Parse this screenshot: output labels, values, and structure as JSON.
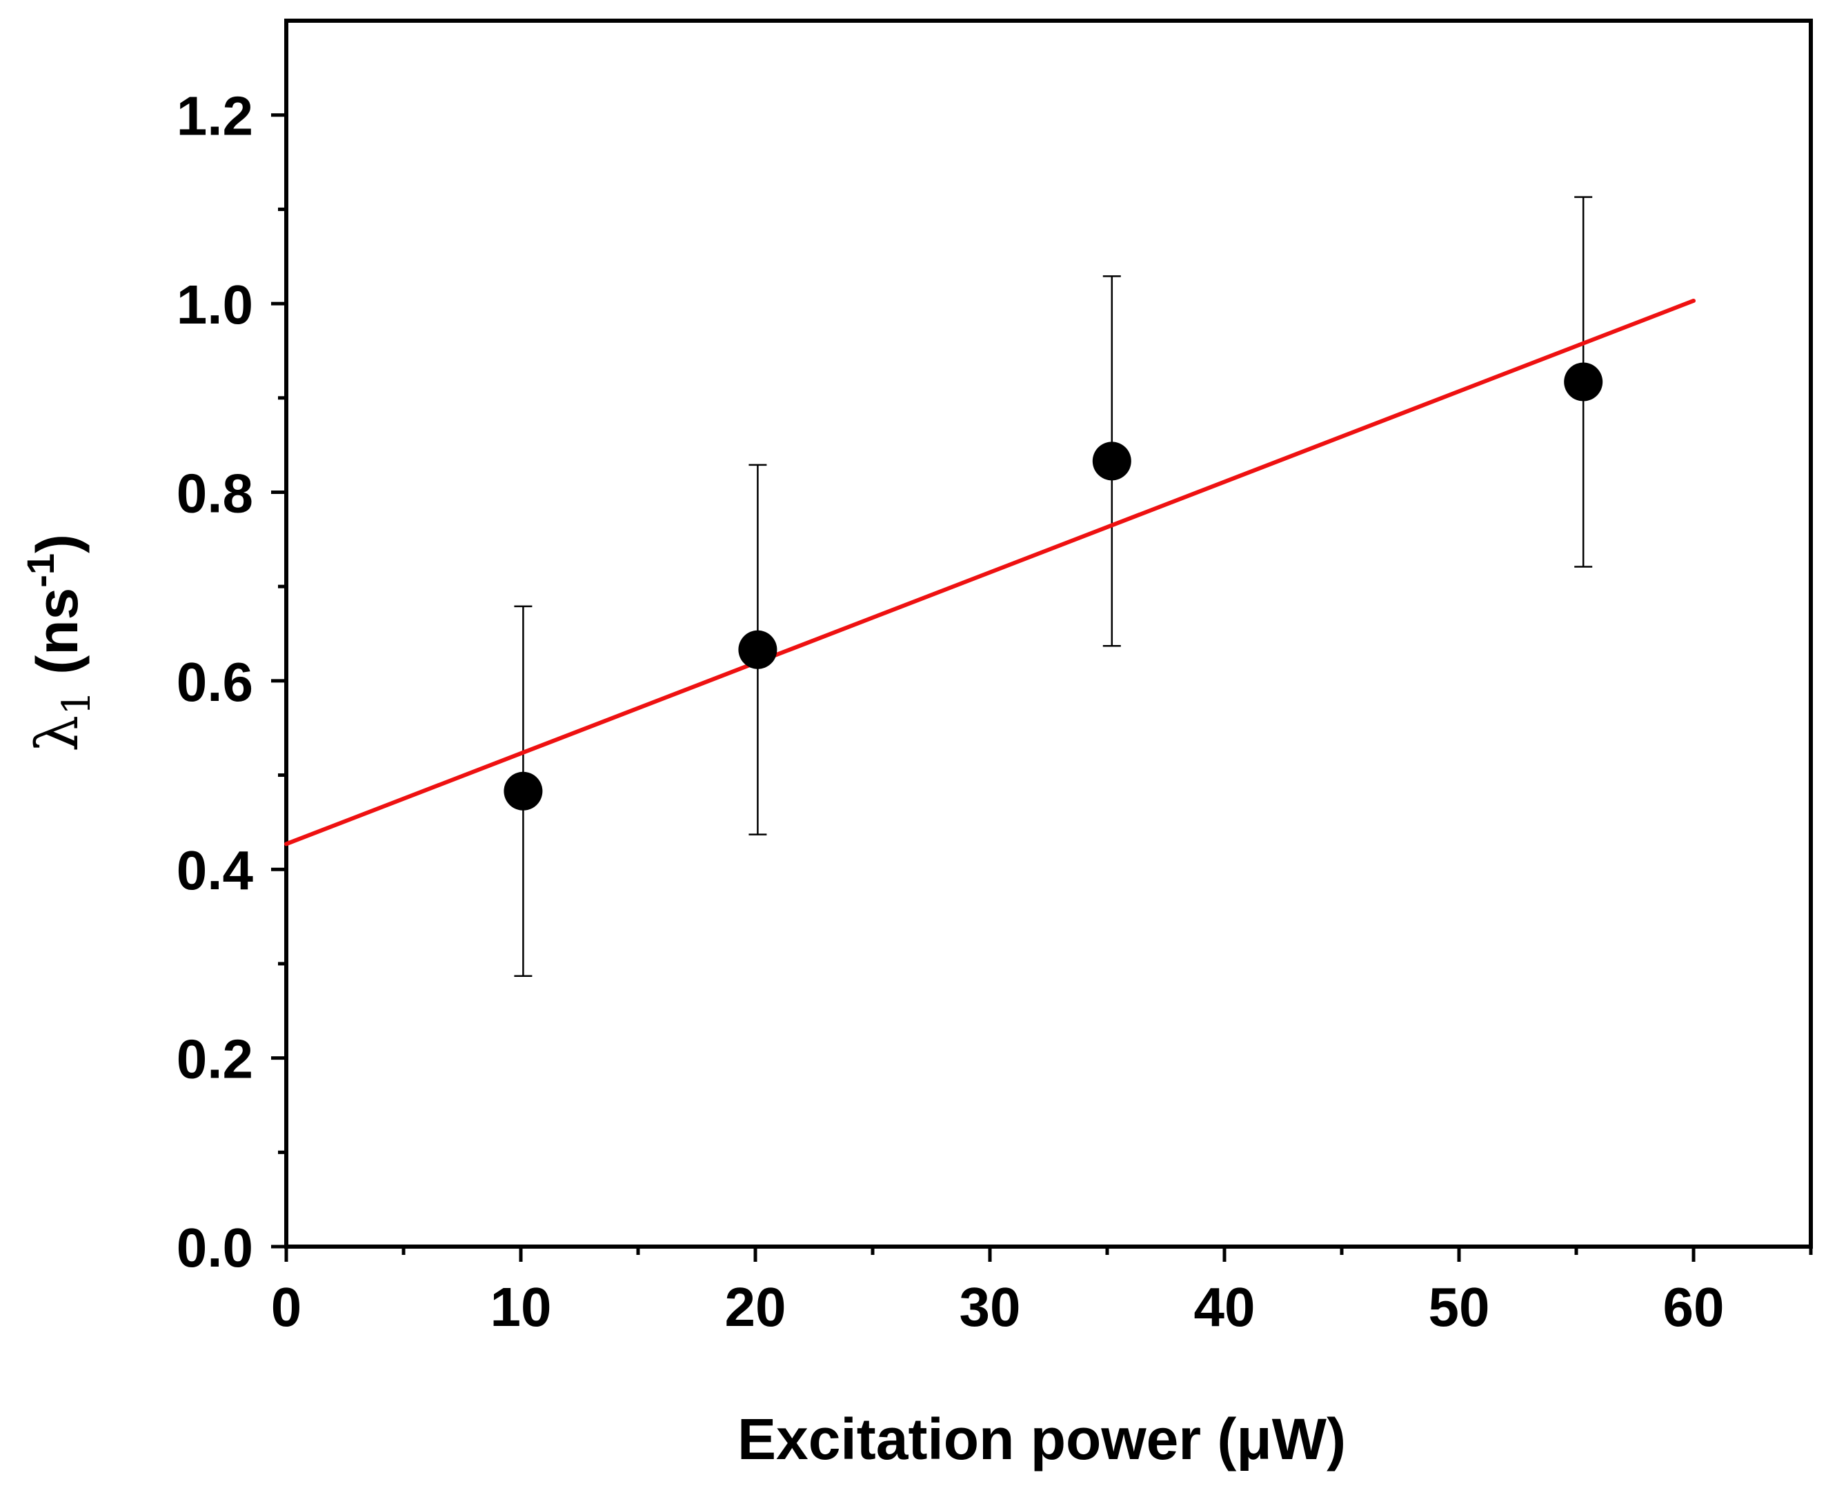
{
  "chart_data": {
    "type": "scatter",
    "title": "",
    "xlabel": "Excitation power (μW)",
    "ylabel": {
      "symbol": "λ",
      "subscript": "1",
      "unit_open": " (ns",
      "unit_sup": "-1",
      "unit_close": ")"
    },
    "xlim": [
      0,
      65
    ],
    "ylim": [
      0,
      1.3
    ],
    "x_ticks": [
      0,
      10,
      20,
      30,
      40,
      50,
      60
    ],
    "x_tick_labels": [
      "0",
      "10",
      "20",
      "30",
      "40",
      "50",
      "60"
    ],
    "x_minor_ticks": [
      5,
      15,
      25,
      35,
      45,
      55,
      65
    ],
    "y_ticks": [
      0,
      0.2,
      0.4,
      0.6,
      0.8,
      1.0,
      1.2
    ],
    "y_tick_labels": [
      "0.0",
      "0.2",
      "0.4",
      "0.6",
      "0.8",
      "1.0",
      "1.2"
    ],
    "y_minor_ticks": [
      0.1,
      0.3,
      0.5,
      0.7,
      0.9,
      1.1
    ],
    "grid": false,
    "points": [
      {
        "x": 10.1,
        "y": 0.483,
        "err": 0.196
      },
      {
        "x": 20.1,
        "y": 0.633,
        "err": 0.196
      },
      {
        "x": 35.2,
        "y": 0.833,
        "err": 0.196
      },
      {
        "x": 55.3,
        "y": 0.917,
        "err": 0.196
      }
    ],
    "fit_line": {
      "x": [
        0,
        60
      ],
      "y": [
        0.427,
        1.003
      ]
    },
    "colors": {
      "points": "#000000",
      "fit": "#ee1111",
      "axes": "#000000"
    }
  }
}
